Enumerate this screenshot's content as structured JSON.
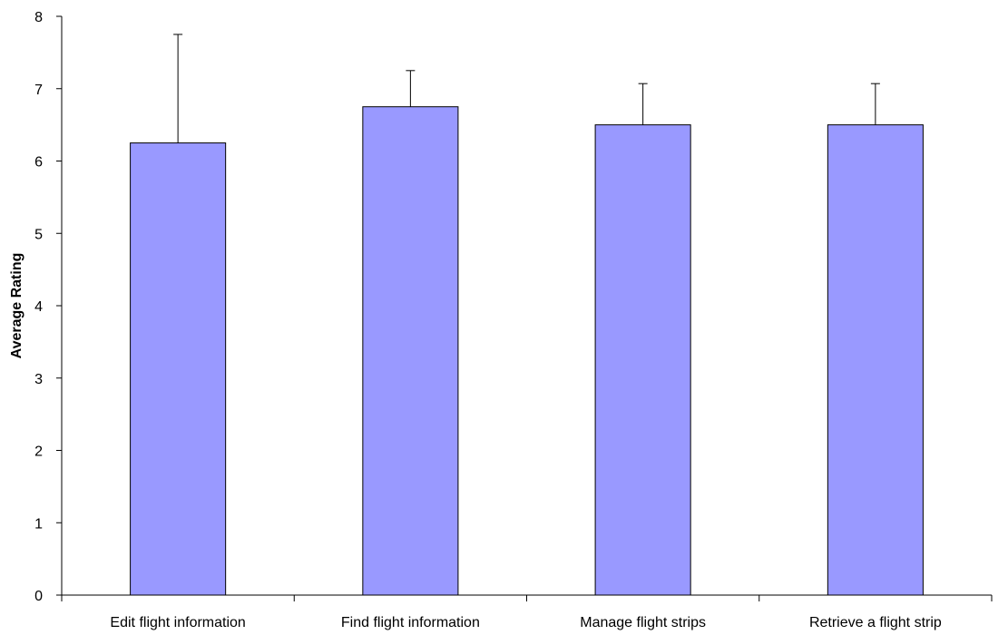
{
  "chart_data": {
    "type": "bar",
    "title": "",
    "xlabel": "",
    "ylabel": "Average Rating",
    "categories": [
      "Edit flight information",
      "Find flight information",
      "Manage flight strips",
      "Retrieve a flight strip"
    ],
    "values": [
      6.25,
      6.75,
      6.5,
      6.5
    ],
    "error_upper": [
      7.75,
      7.25,
      7.07,
      7.07
    ],
    "ylim": [
      0,
      8
    ],
    "yticks": [
      "0",
      "1",
      "2",
      "3",
      "4",
      "5",
      "6",
      "7",
      "8"
    ],
    "grid": false,
    "legend": "none",
    "colors": {
      "bar_fill": "#9999FF",
      "bar_stroke": "#000000",
      "axis": "#000000",
      "error_bar": "#000000",
      "background": "#FFFFFF"
    }
  }
}
